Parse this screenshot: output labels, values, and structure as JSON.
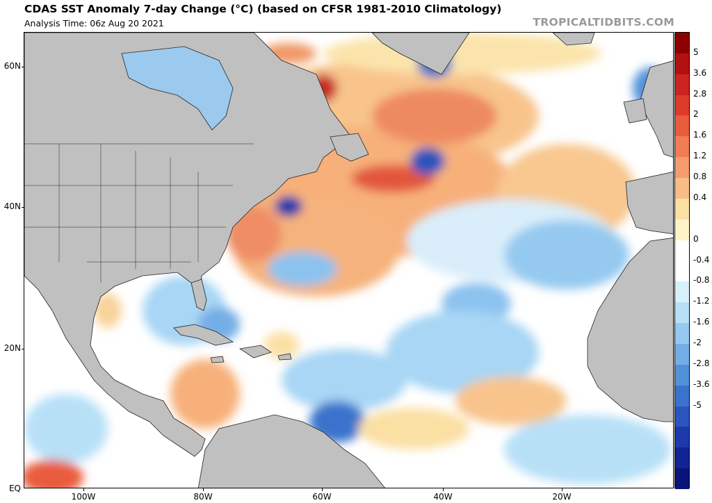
{
  "header": {
    "title": "CDAS SST Anomaly 7-day Change (°C) (based on CFSR 1981-2010 Climatology)",
    "subtitle": "Analysis Time: 06z Aug 20 2021",
    "credit": "TROPICALTIDBITS.COM"
  },
  "axes": {
    "lat_labels": [
      "60N",
      "40N",
      "20N",
      "EQ"
    ],
    "lon_labels": [
      "100W",
      "80W",
      "60W",
      "40W",
      "20W"
    ]
  },
  "colorbar": {
    "labels": [
      "5",
      "3.6",
      "2.8",
      "2",
      "1.6",
      "1.2",
      "0.8",
      "0.4",
      "0",
      "-0.4",
      "-0.8",
      "-1.2",
      "-1.6",
      "-2",
      "-2.8",
      "-3.6",
      "-5"
    ],
    "colors": [
      "#8b0000",
      "#b3110f",
      "#cc2520",
      "#df3b2c",
      "#e95c3e",
      "#f07d54",
      "#f59c6e",
      "#f8bd86",
      "#fbe0a4",
      "#fff4c6",
      "#ffffff",
      "#ffffff",
      "#d7f1fb",
      "#b7e0f7",
      "#95c9f0",
      "#73aee6",
      "#5191da",
      "#3a73cc",
      "#2a55be",
      "#1c3aac",
      "#102493",
      "#0a1478"
    ]
  },
  "map_colors": {
    "land": "#c0c0c0",
    "ocean": "#ffffff",
    "coast": "#222222"
  }
}
